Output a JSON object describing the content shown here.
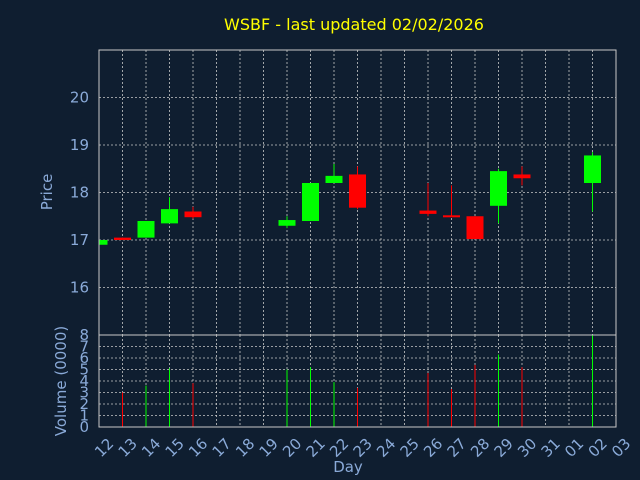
{
  "chart_data": {
    "type": "candlestick",
    "title": "WSBF - last updated 02/02/2026",
    "xlabel": "Day",
    "price_panel": {
      "ylabel": "Price",
      "ylim": [
        15,
        21
      ],
      "yticks": [
        16,
        17,
        18,
        19,
        20
      ],
      "grid": true
    },
    "volume_panel": {
      "ylabel": "Volume (0000)",
      "ylim": [
        0,
        8
      ],
      "yticks": [
        0,
        1,
        2,
        3,
        4,
        5,
        6,
        7,
        8
      ],
      "grid": true
    },
    "x_tick_labels": [
      "12",
      "13",
      "14",
      "15",
      "16",
      "17",
      "18",
      "19",
      "20",
      "21",
      "22",
      "23",
      "24",
      "25",
      "26",
      "27",
      "28",
      "29",
      "30",
      "31",
      "01",
      "02",
      "03"
    ],
    "candles": [
      {
        "day": "12",
        "open": 16.9,
        "high": 17.0,
        "low": 16.9,
        "close": 17.0,
        "volume": 0
      },
      {
        "day": "13",
        "open": 17.05,
        "high": 17.05,
        "low": 17.0,
        "close": 17.0,
        "volume": 3.0
      },
      {
        "day": "14",
        "open": 17.05,
        "high": 17.4,
        "low": 17.05,
        "close": 17.4,
        "volume": 3.6
      },
      {
        "day": "15",
        "open": 17.35,
        "high": 17.9,
        "low": 17.35,
        "close": 17.65,
        "volume": 5.1
      },
      {
        "day": "16",
        "open": 17.6,
        "high": 17.7,
        "low": 17.45,
        "close": 17.48,
        "volume": 3.8
      },
      {
        "day": "20",
        "open": 17.3,
        "high": 17.5,
        "low": 17.25,
        "close": 17.42,
        "volume": 5.0
      },
      {
        "day": "21",
        "open": 17.4,
        "high": 18.2,
        "low": 17.4,
        "close": 18.2,
        "volume": 5.2
      },
      {
        "day": "22",
        "open": 18.2,
        "high": 18.6,
        "low": 18.2,
        "close": 18.35,
        "volume": 3.9
      },
      {
        "day": "23",
        "open": 18.38,
        "high": 18.55,
        "low": 17.65,
        "close": 17.68,
        "volume": 3.4
      },
      {
        "day": "26",
        "open": 17.62,
        "high": 18.2,
        "low": 17.5,
        "close": 17.55,
        "volume": 4.7
      },
      {
        "day": "27",
        "open": 17.52,
        "high": 18.15,
        "low": 17.5,
        "close": 17.5,
        "volume": 3.3
      },
      {
        "day": "28",
        "open": 17.5,
        "high": 17.5,
        "low": 17.02,
        "close": 17.02,
        "volume": 5.4
      },
      {
        "day": "29",
        "open": 17.72,
        "high": 18.5,
        "low": 17.35,
        "close": 18.45,
        "volume": 6.3
      },
      {
        "day": "30",
        "open": 18.38,
        "high": 18.55,
        "low": 18.15,
        "close": 18.3,
        "volume": 5.2
      },
      {
        "day": "02",
        "open": 18.2,
        "high": 18.85,
        "low": 17.6,
        "close": 18.78,
        "volume": 8.0
      }
    ],
    "colors": {
      "up": "#00ff00",
      "down": "#ff0000",
      "background": "#0f1e30",
      "title": "#ffff00",
      "axis_text": "#8aaad8",
      "grid": "#c8c8c8"
    }
  }
}
